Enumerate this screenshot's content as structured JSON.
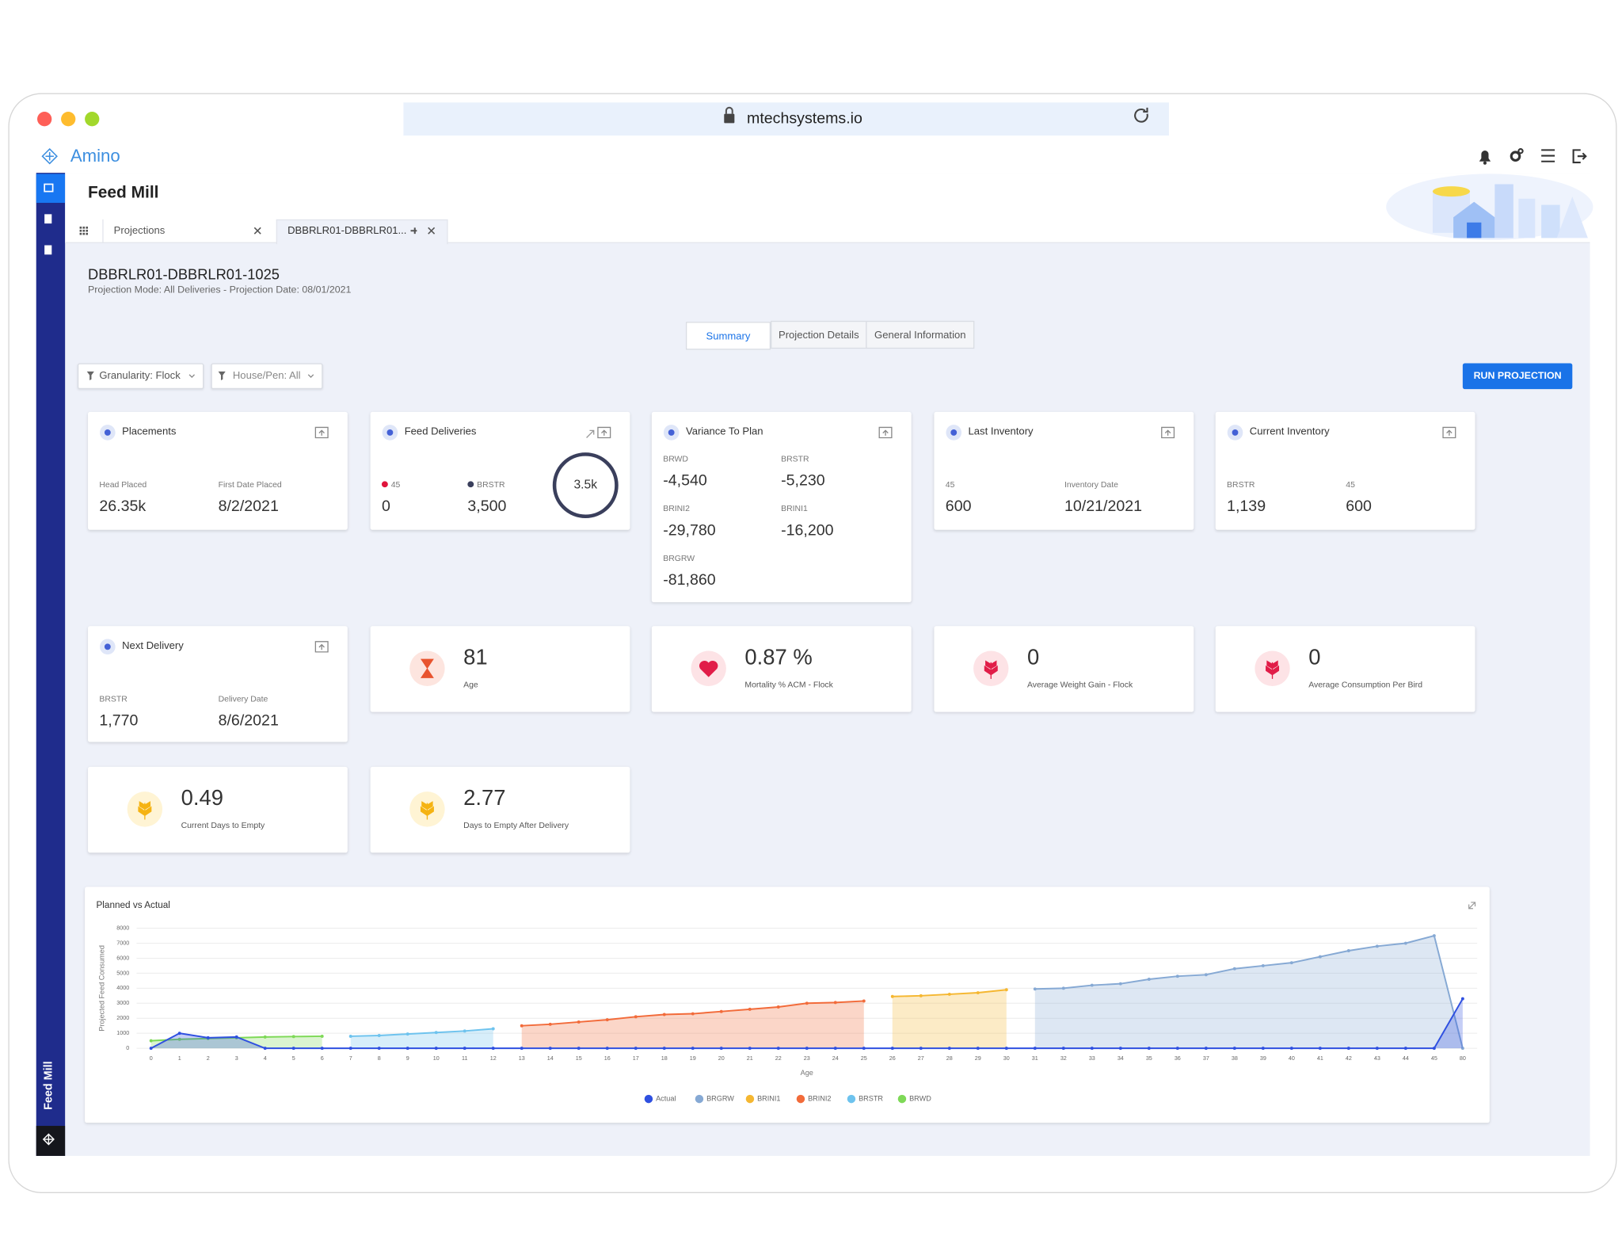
{
  "browser": {
    "url": "mtechsystems.io"
  },
  "app": {
    "logo": "Amino",
    "module": "Feed Mill",
    "sidebar_label": "Feed Mill"
  },
  "page_tabs": [
    "Projections",
    "DBBRLR01-DBBRLR01..."
  ],
  "projection": {
    "title": "DBBRLR01-DBBRLR01-1025",
    "subtitle": "Projection Mode: All Deliveries - Projection Date: 08/01/2021"
  },
  "view_tabs": [
    "Summary",
    "Projection Details",
    "General Information"
  ],
  "filters": [
    "Granularity: Flock",
    "House/Pen: All"
  ],
  "run_button": "RUN PROJECTION",
  "cards": [
    {
      "title": "Placements",
      "fields": [
        {
          "label": "Head Placed",
          "value": "26.35k"
        },
        {
          "label": "First Date Placed",
          "value": "8/2/2021"
        }
      ]
    },
    {
      "title": "Feed Deliveries",
      "fields": [
        {
          "label": "45",
          "value": "0",
          "color": "#e0143c"
        },
        {
          "label": "BRSTR",
          "value": "3,500",
          "color": "#3a3f5c"
        }
      ],
      "total": "3.5k"
    },
    {
      "title": "Variance To Plan",
      "fields": [
        {
          "label": "BRWD",
          "value": "-4,540"
        },
        {
          "label": "BRSTR",
          "value": "-5,230"
        },
        {
          "label": "BRINI2",
          "value": "-29,780"
        },
        {
          "label": "BRINI1",
          "value": "-16,200"
        },
        {
          "label": "BRGRW",
          "value": "-81,860"
        }
      ]
    },
    {
      "title": "Last Inventory",
      "fields": [
        {
          "label": "45",
          "value": "600"
        },
        {
          "label": "Inventory Date",
          "value": "10/21/2021"
        }
      ]
    },
    {
      "title": "Current Inventory",
      "fields": [
        {
          "label": "BRSTR",
          "value": "1,139"
        },
        {
          "label": "45",
          "value": "600"
        }
      ]
    },
    {
      "title": "Next Delivery",
      "fields": [
        {
          "label": "BRSTR",
          "value": "1,770"
        },
        {
          "label": "Delivery Date",
          "value": "8/6/2021"
        }
      ]
    }
  ],
  "kpis": [
    {
      "value": "81",
      "label": "Age"
    },
    {
      "value": "0.87 %",
      "label": "Mortality % ACM - Flock"
    },
    {
      "value": "0",
      "label": "Average Weight Gain - Flock"
    },
    {
      "value": "0",
      "label": "Average Consumption Per Bird"
    },
    {
      "value": "0.49",
      "label": "Current Days to Empty"
    },
    {
      "value": "2.77",
      "label": "Days to Empty After Delivery"
    }
  ],
  "chart_data": {
    "type": "area",
    "title": "Planned vs Actual",
    "x_label": "Age",
    "y_label": "Projected Feed Consumed",
    "categories": [
      "0",
      "1",
      "2",
      "3",
      "4",
      "5",
      "6",
      "7",
      "8",
      "9",
      "10",
      "11",
      "12",
      "13",
      "14",
      "15",
      "16",
      "17",
      "18",
      "19",
      "20",
      "21",
      "22",
      "23",
      "24",
      "25",
      "26",
      "27",
      "28",
      "29",
      "30",
      "31",
      "32",
      "33",
      "34",
      "35",
      "36",
      "37",
      "38",
      "39",
      "40",
      "41",
      "42",
      "43",
      "44",
      "45",
      "80"
    ],
    "ylim": [
      0,
      8000
    ],
    "yticks": [
      0,
      1000,
      2000,
      3000,
      4000,
      5000,
      6000,
      7000,
      8000
    ],
    "grid": true,
    "legend": "bottom",
    "series": [
      {
        "name": "Actual",
        "color": "#2f50e0",
        "values": [
          0,
          1000,
          700,
          750,
          0,
          0,
          0,
          0,
          0,
          0,
          0,
          0,
          0,
          0,
          0,
          0,
          0,
          0,
          0,
          0,
          0,
          0,
          0,
          0,
          0,
          0,
          0,
          0,
          0,
          0,
          0,
          0,
          0,
          0,
          0,
          0,
          0,
          0,
          0,
          0,
          0,
          0,
          0,
          0,
          0,
          0,
          3300
        ]
      },
      {
        "name": "BRGRW",
        "color": "#86a9d4",
        "values": [
          null,
          null,
          null,
          null,
          null,
          null,
          null,
          null,
          null,
          null,
          null,
          null,
          null,
          null,
          null,
          null,
          null,
          null,
          null,
          null,
          null,
          null,
          null,
          null,
          null,
          null,
          null,
          null,
          null,
          null,
          null,
          3950,
          4000,
          4200,
          4300,
          4600,
          4800,
          4900,
          5300,
          5500,
          5700,
          6100,
          6500,
          6800,
          7000,
          7500,
          0
        ]
      },
      {
        "name": "BRINI1",
        "color": "#f5b731",
        "values": [
          null,
          null,
          null,
          null,
          null,
          null,
          null,
          null,
          null,
          null,
          null,
          null,
          null,
          null,
          null,
          null,
          null,
          null,
          null,
          null,
          null,
          null,
          null,
          null,
          null,
          null,
          3450,
          3500,
          3600,
          3700,
          3900,
          null,
          null,
          null,
          null,
          null,
          null,
          null,
          null,
          null,
          null,
          null,
          null,
          null,
          null,
          null,
          null
        ]
      },
      {
        "name": "BRINI2",
        "color": "#f26b3a",
        "values": [
          null,
          null,
          null,
          null,
          null,
          null,
          null,
          null,
          null,
          null,
          null,
          null,
          null,
          1500,
          1600,
          1750,
          1900,
          2100,
          2250,
          2300,
          2450,
          2600,
          2750,
          3000,
          3050,
          3150,
          null,
          null,
          null,
          null,
          null,
          null,
          null,
          null,
          null,
          null,
          null,
          null,
          null,
          null,
          null,
          null,
          null,
          null,
          null,
          null,
          null
        ]
      },
      {
        "name": "BRSTR",
        "color": "#6ec3ee",
        "values": [
          null,
          null,
          null,
          null,
          null,
          null,
          null,
          800,
          850,
          950,
          1050,
          1150,
          1300,
          null,
          null,
          null,
          null,
          null,
          null,
          null,
          null,
          null,
          null,
          null,
          null,
          null,
          null,
          null,
          null,
          null,
          null,
          null,
          null,
          null,
          null,
          null,
          null,
          null,
          null,
          null,
          null,
          null,
          null,
          null,
          null,
          null,
          null
        ]
      },
      {
        "name": "BRWD",
        "color": "#7ed957",
        "values": [
          500,
          600,
          650,
          700,
          750,
          780,
          800,
          null,
          null,
          null,
          null,
          null,
          null,
          null,
          null,
          null,
          null,
          null,
          null,
          null,
          null,
          null,
          null,
          null,
          null,
          null,
          null,
          null,
          null,
          null,
          null,
          null,
          null,
          null,
          null,
          null,
          null,
          null,
          null,
          null,
          null,
          null,
          null,
          null,
          null,
          null,
          null
        ]
      }
    ]
  }
}
